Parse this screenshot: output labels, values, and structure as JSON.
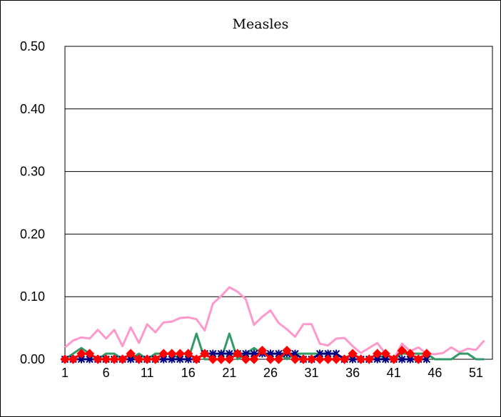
{
  "chart_data": {
    "type": "line",
    "title": "Measles",
    "xlabel": "",
    "ylabel": "",
    "x_range": [
      1,
      53
    ],
    "x_tick_labels": [
      "1",
      "6",
      "11",
      "16",
      "21",
      "26",
      "31",
      "36",
      "41",
      "46",
      "51"
    ],
    "ylim": [
      0,
      0.5
    ],
    "y_tick_labels": [
      "0.00",
      "0.10",
      "0.20",
      "0.30",
      "0.40",
      "0.50"
    ],
    "grid": "horizontal",
    "legend": "none",
    "series": [
      {
        "color": "#ff99cc",
        "marker": "none",
        "values": [
          0.019,
          0.03,
          0.035,
          0.033,
          0.047,
          0.033,
          0.047,
          0.021,
          0.051,
          0.026,
          0.056,
          0.043,
          0.059,
          0.06,
          0.066,
          0.067,
          0.064,
          0.046,
          0.089,
          0.101,
          0.115,
          0.108,
          0.096,
          0.055,
          0.068,
          0.078,
          0.058,
          0.048,
          0.036,
          0.056,
          0.056,
          0.025,
          0.022,
          0.033,
          0.034,
          0.021,
          0.01,
          0.018,
          0.026,
          0.009,
          0.0,
          0.025,
          0.013,
          0.019,
          0.009,
          0.008,
          0.01,
          0.019,
          0.011,
          0.017,
          0.015,
          0.03
        ]
      },
      {
        "color": "#339966",
        "marker": "none",
        "values": [
          0.0,
          0.009,
          0.018,
          0.009,
          0.0,
          0.009,
          0.009,
          0.0,
          0.0,
          0.009,
          0.0,
          0.009,
          0.009,
          0.009,
          0.0,
          0.0,
          0.041,
          0.0,
          0.0,
          0.0,
          0.041,
          0.0,
          0.009,
          0.018,
          0.009,
          0.009,
          0.009,
          0.0,
          0.009,
          0.009,
          0.009,
          0.009,
          0.009,
          0.009,
          0.0,
          0.009,
          0.0,
          0.0,
          0.009,
          0.0,
          0.0,
          0.009,
          0.009,
          0.009,
          0.009,
          0.0,
          0.0,
          0.0,
          0.009,
          0.009,
          0.0,
          0.0
        ]
      },
      {
        "color": "#000080",
        "marker": "x",
        "values": [
          0.0,
          0.0,
          0.0,
          0.0,
          0.0,
          0.0,
          0.0,
          0.0,
          0.0,
          0.0,
          0.0,
          0.0,
          0.0,
          0.0,
          0.0,
          0.0,
          0.0,
          0.009,
          0.009,
          0.009,
          0.009,
          0.009,
          0.009,
          0.009,
          0.009,
          0.009,
          0.009,
          0.009,
          0.009,
          0.0,
          0.0,
          0.009,
          0.009,
          0.009,
          0.0,
          0.0,
          0.0,
          0.0,
          0.0,
          0.0,
          0.0,
          0.0,
          0.0,
          0.0,
          0.0
        ]
      },
      {
        "color": "#ff0000",
        "marker": "diamond",
        "values": [
          0.0,
          0.0,
          0.009,
          0.009,
          0.0,
          0.0,
          0.0,
          0.0,
          0.009,
          0.0,
          0.0,
          0.0,
          0.009,
          0.009,
          0.009,
          0.009,
          0.0,
          0.009,
          0.0,
          0.0,
          0.0,
          0.009,
          0.0,
          0.0,
          0.014,
          0.0,
          0.0,
          0.014,
          0.0,
          0.0,
          0.0,
          0.0,
          0.0,
          0.0,
          0.0,
          0.009,
          0.0,
          0.0,
          0.009,
          0.009,
          0.0,
          0.014,
          0.009,
          0.0,
          0.009
        ]
      }
    ]
  }
}
